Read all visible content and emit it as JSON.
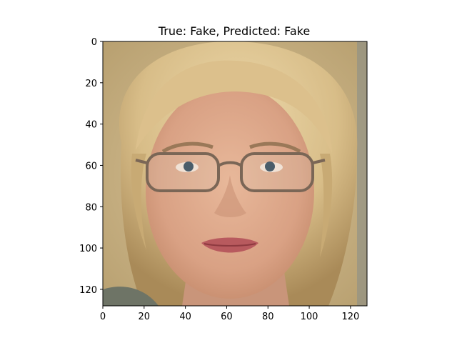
{
  "figure": {
    "title": "True: Fake, Predicted: Fake",
    "image": {
      "description": "128x128 synthetic face image",
      "extent_x": [
        0,
        128
      ],
      "extent_y": [
        128,
        0
      ]
    },
    "x_axis": {
      "ticks": [
        0,
        20,
        40,
        60,
        80,
        100,
        120
      ],
      "tick_labels": [
        "0",
        "20",
        "40",
        "60",
        "80",
        "100",
        "120"
      ]
    },
    "y_axis": {
      "ticks": [
        0,
        20,
        40,
        60,
        80,
        100,
        120
      ],
      "tick_labels": [
        "0",
        "20",
        "40",
        "60",
        "80",
        "100",
        "120"
      ]
    }
  }
}
